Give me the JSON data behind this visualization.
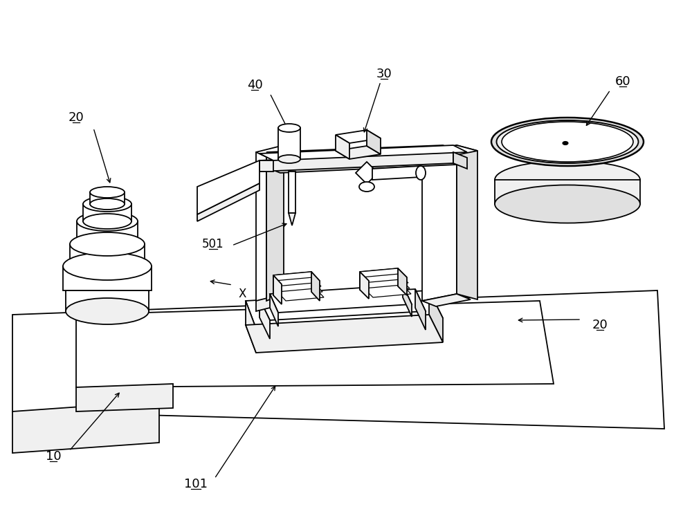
{
  "bg_color": "#ffffff",
  "lc": "#000000",
  "lw": 1.3,
  "face_white": "#ffffff",
  "face_light": "#f0f0f0",
  "face_mid": "#e0e0e0",
  "face_dark": "#c8c8c8"
}
